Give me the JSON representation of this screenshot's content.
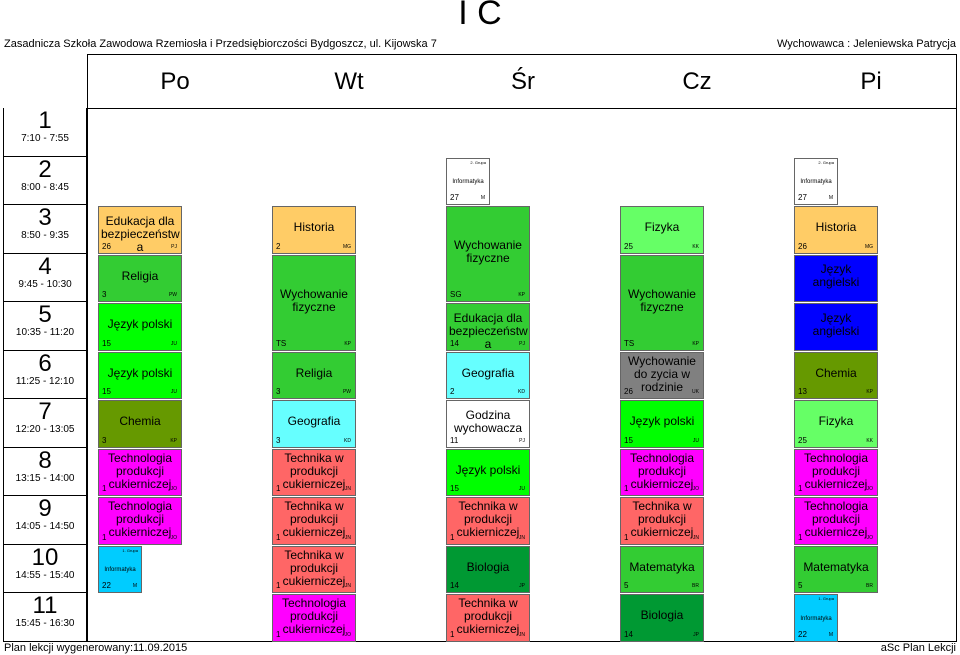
{
  "header": {
    "title": "I C",
    "school": "Zasadnicza Szkoła Zawodowa Rzemiosła i Przedsiębiorczości Bydgoszcz, ul. Kijowska 7",
    "teacher": "Wychowawca : Jeleniewska Patrycja"
  },
  "days": [
    "Po",
    "Wt",
    "Śr",
    "Cz",
    "Pi"
  ],
  "periods": [
    {
      "num": "1",
      "time": "7:10 - 7:55"
    },
    {
      "num": "2",
      "time": "8:00 - 8:45"
    },
    {
      "num": "3",
      "time": "8:50 - 9:35"
    },
    {
      "num": "4",
      "time": "9:45 - 10:30"
    },
    {
      "num": "5",
      "time": "10:35 - 11:20"
    },
    {
      "num": "6",
      "time": "11:25 - 12:10"
    },
    {
      "num": "7",
      "time": "12:20 - 13:05"
    },
    {
      "num": "8",
      "time": "13:15 - 14:00"
    },
    {
      "num": "9",
      "time": "14:05 - 14:50"
    },
    {
      "num": "10",
      "time": "14:55 - 15:40"
    },
    {
      "num": "11",
      "time": "15:45 - 16:30"
    }
  ],
  "lessons": [
    {
      "day": 0,
      "start": 2,
      "span": 1,
      "subject": "Edukacja dla bezpieczeństw a",
      "room": "26",
      "teacher": "PJ",
      "color": "#ffcc66"
    },
    {
      "day": 0,
      "start": 3,
      "span": 1,
      "subject": "Religia",
      "room": "3",
      "teacher": "PW",
      "color": "#33cc33"
    },
    {
      "day": 0,
      "start": 4,
      "span": 1,
      "subject": "Język polski",
      "room": "15",
      "teacher": "JU",
      "color": "#00ff00"
    },
    {
      "day": 0,
      "start": 5,
      "span": 1,
      "subject": "Język polski",
      "room": "15",
      "teacher": "JU",
      "color": "#00ff00"
    },
    {
      "day": 0,
      "start": 6,
      "span": 1,
      "subject": "Chemia",
      "room": "3",
      "teacher": "KP",
      "color": "#669900"
    },
    {
      "day": 0,
      "start": 7,
      "span": 1,
      "subject": "Technologia produkcji cukierniczej",
      "room": "1",
      "teacher": "JO",
      "color": "#ff00ff"
    },
    {
      "day": 0,
      "start": 8,
      "span": 1,
      "subject": "Technologia produkcji cukierniczej",
      "room": "1",
      "teacher": "JO",
      "color": "#ff00ff"
    },
    {
      "day": 0,
      "start": 9,
      "span": 1,
      "subject": "Informatyka",
      "room": "22",
      "teacher": "M",
      "color": "#00ccff",
      "half": true,
      "group": "1. Grupa"
    },
    {
      "day": 1,
      "start": 2,
      "span": 1,
      "subject": "Historia",
      "room": "2",
      "teacher": "MG",
      "color": "#ffcc66"
    },
    {
      "day": 1,
      "start": 3,
      "span": 2,
      "subject": "Wychowanie fizyczne",
      "room": "TS",
      "teacher": "KP",
      "color": "#33cc33"
    },
    {
      "day": 1,
      "start": 5,
      "span": 1,
      "subject": "Religia",
      "room": "3",
      "teacher": "PW",
      "color": "#33cc33"
    },
    {
      "day": 1,
      "start": 6,
      "span": 1,
      "subject": "Geografia",
      "room": "3",
      "teacher": "KD",
      "color": "#66ffff"
    },
    {
      "day": 1,
      "start": 7,
      "span": 1,
      "subject": "Technika w produkcji cukierniczej",
      "room": "1",
      "teacher": "JN",
      "color": "#ff6666"
    },
    {
      "day": 1,
      "start": 8,
      "span": 1,
      "subject": "Technika w produkcji cukierniczej",
      "room": "1",
      "teacher": "JN",
      "color": "#ff6666"
    },
    {
      "day": 1,
      "start": 9,
      "span": 1,
      "subject": "Technika w produkcji cukierniczej",
      "room": "1",
      "teacher": "JN",
      "color": "#ff6666"
    },
    {
      "day": 1,
      "start": 10,
      "span": 1,
      "subject": "Technologia produkcji cukierniczej",
      "room": "1",
      "teacher": "JO",
      "color": "#ff00ff"
    },
    {
      "day": 2,
      "start": 1,
      "span": 1,
      "subject": "Informatyka",
      "room": "27",
      "teacher": "M",
      "color": "#ffffff",
      "half": true,
      "group": "2. Grupa"
    },
    {
      "day": 2,
      "start": 2,
      "span": 2,
      "subject": "Wychowanie fizyczne",
      "room": "SG",
      "teacher": "KP",
      "color": "#33cc33"
    },
    {
      "day": 2,
      "start": 4,
      "span": 1,
      "subject": "Edukacja dla bezpieczeństw a",
      "room": "14",
      "teacher": "PJ",
      "color": "#33cc33"
    },
    {
      "day": 2,
      "start": 5,
      "span": 1,
      "subject": "Geografia",
      "room": "2",
      "teacher": "KD",
      "color": "#66ffff"
    },
    {
      "day": 2,
      "start": 6,
      "span": 1,
      "subject": "Godzina wychowacza",
      "room": "11",
      "teacher": "PJ",
      "color": "#ffffff"
    },
    {
      "day": 2,
      "start": 7,
      "span": 1,
      "subject": "Język polski",
      "room": "15",
      "teacher": "JU",
      "color": "#00ff00"
    },
    {
      "day": 2,
      "start": 8,
      "span": 1,
      "subject": "Technika w produkcji cukierniczej",
      "room": "1",
      "teacher": "JN",
      "color": "#ff6666"
    },
    {
      "day": 2,
      "start": 9,
      "span": 1,
      "subject": "Biologia",
      "room": "14",
      "teacher": "JP",
      "color": "#009933"
    },
    {
      "day": 2,
      "start": 10,
      "span": 1,
      "subject": "Technika w produkcji cukierniczej",
      "room": "1",
      "teacher": "JN",
      "color": "#ff6666"
    },
    {
      "day": 3,
      "start": 2,
      "span": 1,
      "subject": "Fizyka",
      "room": "25",
      "teacher": "KK",
      "color": "#66ff66"
    },
    {
      "day": 3,
      "start": 3,
      "span": 2,
      "subject": "Wychowanie fizyczne",
      "room": "TS",
      "teacher": "KP",
      "color": "#33cc33"
    },
    {
      "day": 3,
      "start": 5,
      "span": 1,
      "subject": "Wychowanie do zycia w rodzinie",
      "room": "26",
      "teacher": "UK",
      "color": "#808080"
    },
    {
      "day": 3,
      "start": 6,
      "span": 1,
      "subject": "Język polski",
      "room": "15",
      "teacher": "JU",
      "color": "#00ff00"
    },
    {
      "day": 3,
      "start": 7,
      "span": 1,
      "subject": "Technologia produkcji cukierniczej",
      "room": "1",
      "teacher": "JO",
      "color": "#ff00ff"
    },
    {
      "day": 3,
      "start": 8,
      "span": 1,
      "subject": "Technika w produkcji cukierniczej",
      "room": "1",
      "teacher": "JN",
      "color": "#ff6666"
    },
    {
      "day": 3,
      "start": 9,
      "span": 1,
      "subject": "Matematyka",
      "room": "5",
      "teacher": "BR",
      "color": "#33cc33"
    },
    {
      "day": 3,
      "start": 10,
      "span": 1,
      "subject": "Biologia",
      "room": "14",
      "teacher": "JP",
      "color": "#009933"
    },
    {
      "day": 4,
      "start": 1,
      "span": 1,
      "subject": "Informatyka",
      "room": "27",
      "teacher": "M",
      "color": "#ffffff",
      "half": true,
      "group": "2. Grupa"
    },
    {
      "day": 4,
      "start": 2,
      "span": 1,
      "subject": "Historia",
      "room": "26",
      "teacher": "MG",
      "color": "#ffcc66"
    },
    {
      "day": 4,
      "start": 3,
      "span": 1,
      "subject": "Język angielski",
      "room": "",
      "teacher": "",
      "color": "#0000ff"
    },
    {
      "day": 4,
      "start": 4,
      "span": 1,
      "subject": "Język angielski",
      "room": "",
      "teacher": "",
      "color": "#0000ff"
    },
    {
      "day": 4,
      "start": 5,
      "span": 1,
      "subject": "Chemia",
      "room": "13",
      "teacher": "KP",
      "color": "#669900"
    },
    {
      "day": 4,
      "start": 6,
      "span": 1,
      "subject": "Fizyka",
      "room": "25",
      "teacher": "KK",
      "color": "#66ff66"
    },
    {
      "day": 4,
      "start": 7,
      "span": 1,
      "subject": "Technologia produkcji cukierniczej",
      "room": "1",
      "teacher": "JO",
      "color": "#ff00ff"
    },
    {
      "day": 4,
      "start": 8,
      "span": 1,
      "subject": "Technologia produkcji cukierniczej",
      "room": "1",
      "teacher": "JO",
      "color": "#ff00ff"
    },
    {
      "day": 4,
      "start": 9,
      "span": 1,
      "subject": "Matematyka",
      "room": "5",
      "teacher": "BR",
      "color": "#33cc33"
    },
    {
      "day": 4,
      "start": 10,
      "span": 1,
      "subject": "Informatyka",
      "room": "22",
      "teacher": "M",
      "color": "#00ccff",
      "half": true,
      "group": "1. Grupa"
    }
  ],
  "footer": {
    "generated": "Plan lekcji wygenerowany:11.09.2015",
    "brand": "aSc Plan Lekcji"
  }
}
